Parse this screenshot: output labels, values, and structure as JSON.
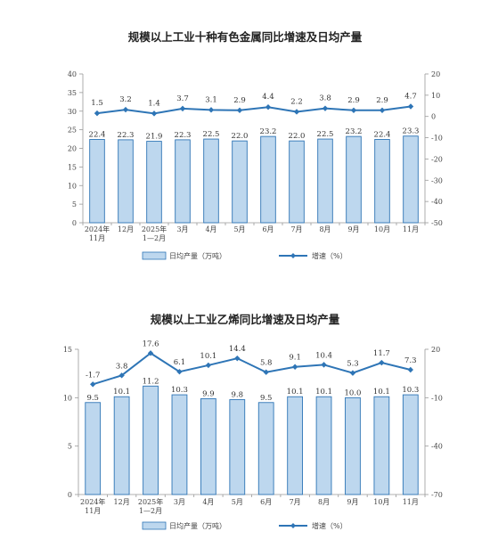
{
  "chart_data": [
    {
      "type": "bar",
      "title": "规模以上工业十种有色金属同比增速及日均产量",
      "categories": [
        [
          "2024年",
          "11月"
        ],
        [
          "12月"
        ],
        [
          "2025年",
          "1—2月"
        ],
        [
          "3月"
        ],
        [
          "4月"
        ],
        [
          "5月"
        ],
        [
          "6月"
        ],
        [
          "7月"
        ],
        [
          "8月"
        ],
        [
          "9月"
        ],
        [
          "10月"
        ],
        [
          "11月"
        ]
      ],
      "ylim": [
        0,
        40
      ],
      "yticks": [
        0,
        5,
        10,
        15,
        20,
        25,
        30,
        35,
        40
      ],
      "y2lim": [
        -50,
        20
      ],
      "y2ticks": [
        -50,
        -40,
        -30,
        -20,
        -10,
        0,
        10,
        20
      ],
      "series": [
        {
          "name": "日均产量（万吨）",
          "type": "bar",
          "axis": "left",
          "values": [
            22.4,
            22.3,
            21.9,
            22.3,
            22.5,
            22.0,
            23.2,
            22.0,
            22.5,
            23.2,
            22.4,
            23.3
          ],
          "labels": [
            "22.4",
            "22.3",
            "21.9",
            "22.3",
            "22.5",
            "22.0",
            "23.2",
            "22.0",
            "22.5",
            "23.2",
            "22.4",
            "23.3"
          ]
        },
        {
          "name": "增速（%）",
          "type": "line",
          "axis": "right",
          "values": [
            1.5,
            3.2,
            1.4,
            3.7,
            3.1,
            2.9,
            4.4,
            2.2,
            3.8,
            2.9,
            2.9,
            4.7
          ],
          "labels": [
            "1.5",
            "3.2",
            "1.4",
            "3.7",
            "3.1",
            "2.9",
            "4.4",
            "2.2",
            "3.8",
            "2.9",
            "2.9",
            "4.7"
          ]
        }
      ],
      "colors": {
        "bar_fill": "#bdd7ee",
        "bar_stroke": "#2e75b6",
        "line": "#2e75b6"
      }
    },
    {
      "type": "bar",
      "title": "规模以上工业乙烯同比增速及日均产量",
      "categories": [
        [
          "2024年",
          "11月"
        ],
        [
          "12月"
        ],
        [
          "2025年",
          "1—2月"
        ],
        [
          "3月"
        ],
        [
          "4月"
        ],
        [
          "5月"
        ],
        [
          "6月"
        ],
        [
          "7月"
        ],
        [
          "8月"
        ],
        [
          "9月"
        ],
        [
          "10月"
        ],
        [
          "11月"
        ]
      ],
      "ylim": [
        0,
        15
      ],
      "yticks": [
        0,
        5,
        10,
        15
      ],
      "y2lim": [
        -70,
        20
      ],
      "y2ticks": [
        -70,
        -40,
        -10,
        20
      ],
      "series": [
        {
          "name": "日均产量（万吨）",
          "type": "bar",
          "axis": "left",
          "values": [
            9.5,
            10.1,
            11.2,
            10.3,
            9.9,
            9.8,
            9.5,
            10.1,
            10.1,
            10.0,
            10.1,
            10.3
          ],
          "labels": [
            "9.5",
            "10.1",
            "11.2",
            "10.3",
            "9.9",
            "9.8",
            "9.5",
            "10.1",
            "10.1",
            "10.0",
            "10.1",
            "10.3"
          ]
        },
        {
          "name": "增速（%）",
          "type": "line",
          "axis": "right",
          "values": [
            -1.7,
            3.8,
            17.6,
            6.1,
            10.1,
            14.4,
            5.8,
            9.1,
            10.4,
            5.3,
            11.7,
            7.3
          ],
          "labels": [
            "-1.7",
            "3.8",
            "17.6",
            "6.1",
            "10.1",
            "14.4",
            "5.8",
            "9.1",
            "10.4",
            "5.3",
            "11.7",
            "7.3"
          ]
        }
      ],
      "colors": {
        "bar_fill": "#bdd7ee",
        "bar_stroke": "#2e75b6",
        "line": "#2e75b6"
      }
    }
  ]
}
